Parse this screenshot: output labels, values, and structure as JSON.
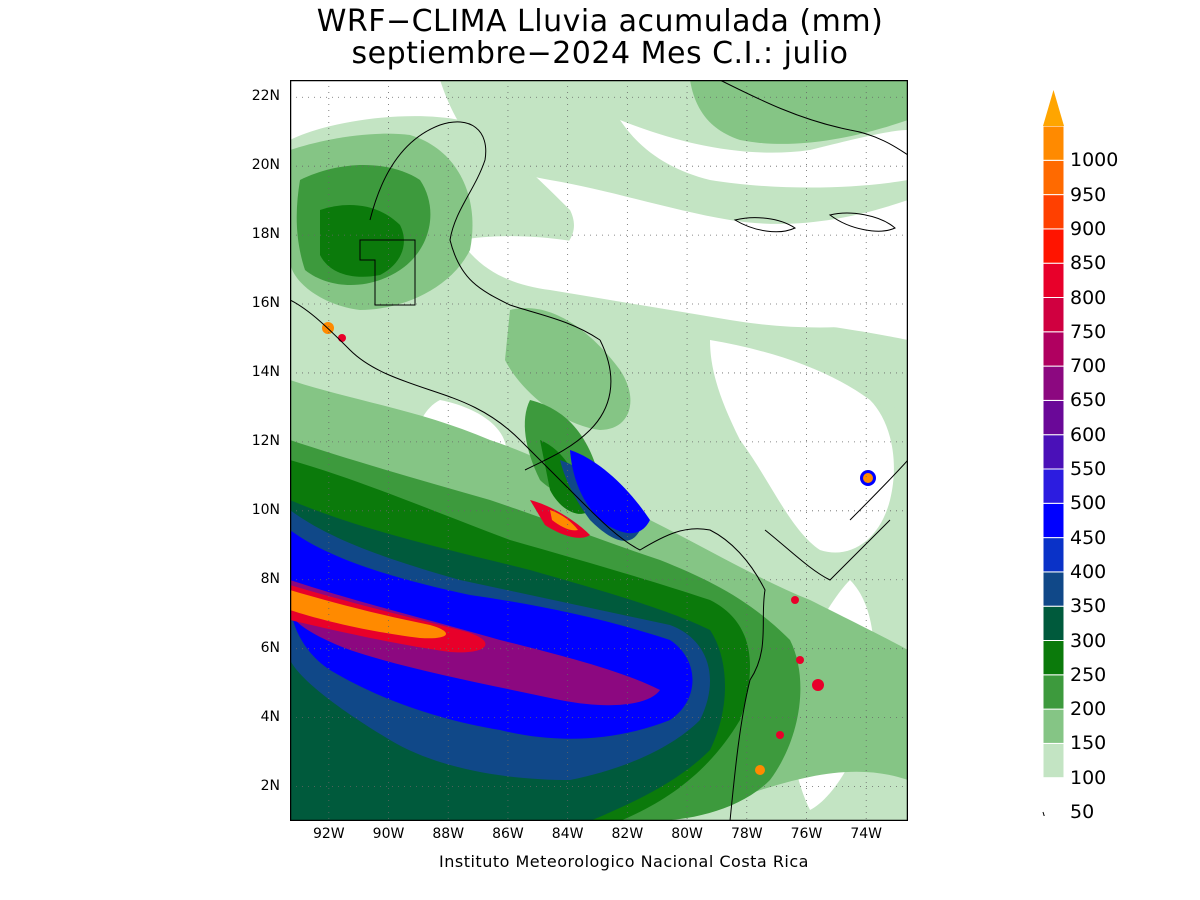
{
  "title": {
    "line1": "WRF−CLIMA Lluvia acumulada (mm)",
    "line2": "septiembre−2024 Mes C.I.: julio"
  },
  "axes": {
    "y_labels": [
      "22N",
      "20N",
      "18N",
      "16N",
      "14N",
      "12N",
      "10N",
      "8N",
      "6N",
      "4N",
      "2N"
    ],
    "x_labels": [
      "92W",
      "90W",
      "88W",
      "86W",
      "84W",
      "82W",
      "80W",
      "78W",
      "76W",
      "74W"
    ]
  },
  "map": {
    "lon_range": [
      -93.3,
      -72.6
    ],
    "lat_range": [
      1.0,
      22.5
    ],
    "grid": "dotted every 2 degrees"
  },
  "colorbar": {
    "levels": [
      "50",
      "100",
      "150",
      "200",
      "250",
      "300",
      "350",
      "400",
      "450",
      "500",
      "550",
      "600",
      "650",
      "700",
      "750",
      "800",
      "850",
      "900",
      "950",
      "1000"
    ],
    "colors": [
      "#ffffff",
      "#c3e4c3",
      "#85c585",
      "#3d9a3d",
      "#0b7a0b",
      "#005a3c",
      "#104888",
      "#0a32c8",
      "#0000ff",
      "#2c1ce0",
      "#4a10b8",
      "#6a0898",
      "#8c0880",
      "#b00060",
      "#d00040",
      "#e8002a",
      "#ff1400",
      "#ff4000",
      "#ff6a00",
      "#ff8a00",
      "#ffa500"
    ],
    "extends": "both"
  },
  "footer": "Instituto Meteorologico Nacional Costa Rica"
}
